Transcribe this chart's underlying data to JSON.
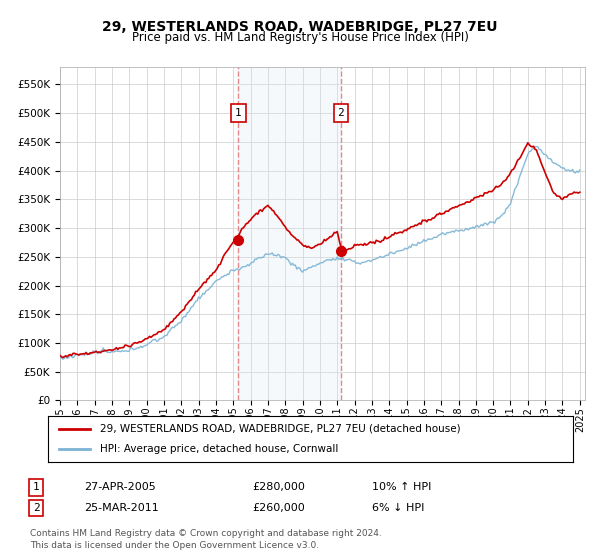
{
  "title": "29, WESTERLANDS ROAD, WADEBRIDGE, PL27 7EU",
  "subtitle": "Price paid vs. HM Land Registry's House Price Index (HPI)",
  "ytick_values": [
    0,
    50000,
    100000,
    150000,
    200000,
    250000,
    300000,
    350000,
    400000,
    450000,
    500000,
    550000
  ],
  "ylim": [
    0,
    580000
  ],
  "legend_line1": "29, WESTERLANDS ROAD, WADEBRIDGE, PL27 7EU (detached house)",
  "legend_line2": "HPI: Average price, detached house, Cornwall",
  "transaction1": {
    "num": 1,
    "date": "27-APR-2005",
    "price": "£280,000",
    "hpi_pct": "10%",
    "direction": "↑"
  },
  "transaction2": {
    "num": 2,
    "date": "25-MAR-2011",
    "price": "£260,000",
    "hpi_pct": "6%",
    "direction": "↓"
  },
  "footnote1": "Contains HM Land Registry data © Crown copyright and database right 2024.",
  "footnote2": "This data is licensed under the Open Government Licence v3.0.",
  "hpi_color": "#7ab3d4",
  "price_color": "#cc0000",
  "marker_color": "#cc0000",
  "shade_color": "#dae8f5",
  "grid_color": "#cccccc",
  "background_color": "#ffffff",
  "vline_color": "#e08080",
  "t1_year": 2005.29,
  "t2_year": 2011.21,
  "t1_price": 280000,
  "t2_price": 260000
}
